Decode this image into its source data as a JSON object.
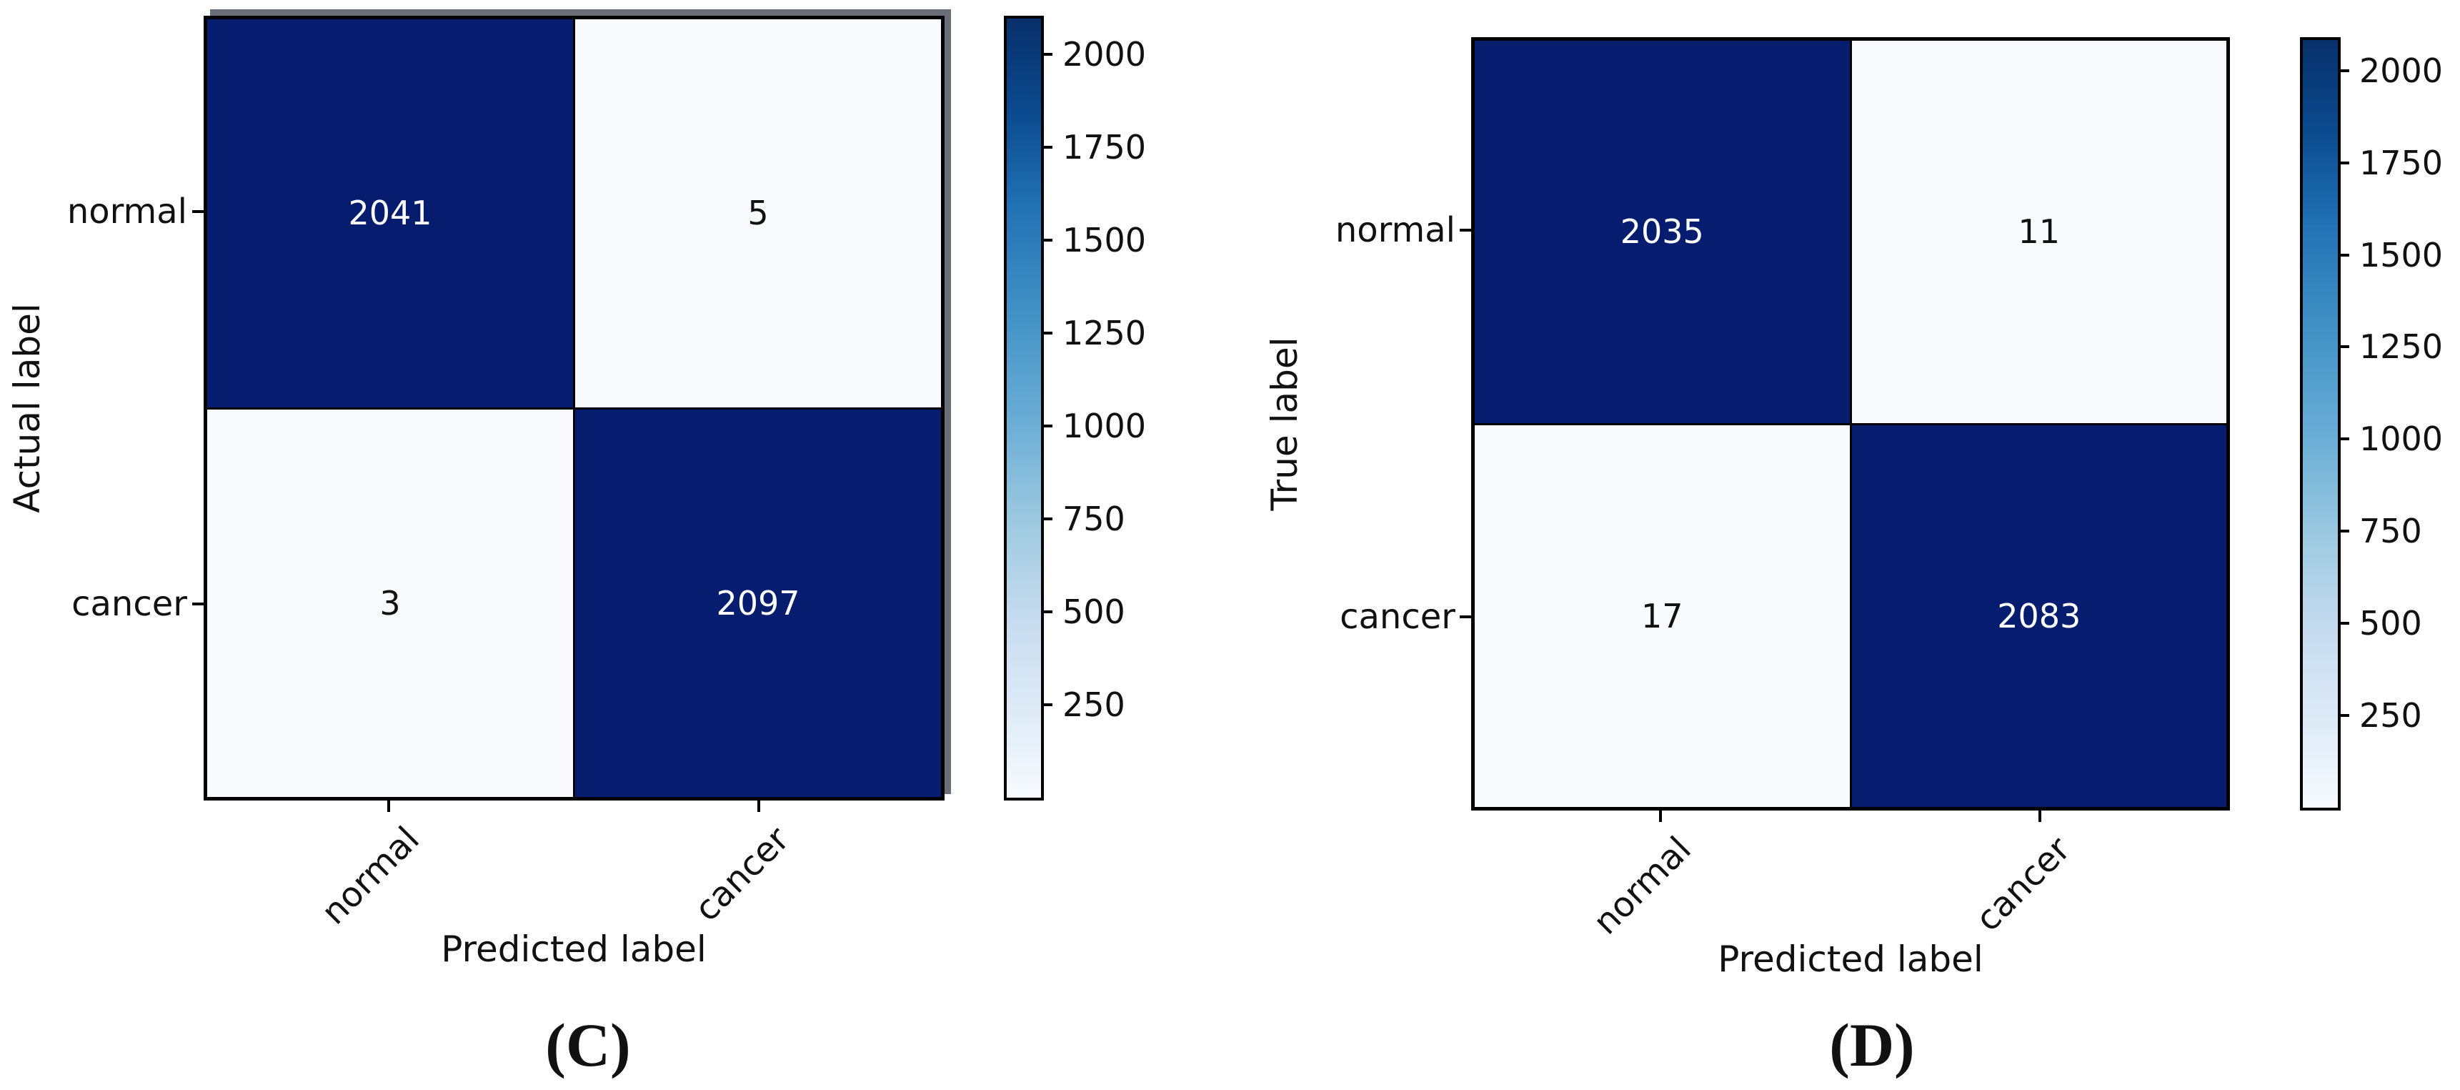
{
  "chart_data": [
    {
      "type": "heatmap",
      "title": "(C)",
      "xlabel": "Predicted label",
      "ylabel": "Actual label",
      "x_categories": [
        "normal",
        "cancer"
      ],
      "y_categories": [
        "normal",
        "cancer"
      ],
      "values": [
        [
          2041,
          5
        ],
        [
          3,
          2097
        ]
      ],
      "vmin": 0,
      "vmax": 2097,
      "colorbar_ticks": [
        250,
        500,
        750,
        1000,
        1250,
        1500,
        1750,
        2000
      ],
      "colormap": "Blues",
      "legend_position": "colorbar-right",
      "grid": false
    },
    {
      "type": "heatmap",
      "title": "(D)",
      "xlabel": "Predicted label",
      "ylabel": "True label",
      "x_categories": [
        "normal",
        "cancer"
      ],
      "y_categories": [
        "normal",
        "cancer"
      ],
      "values": [
        [
          2035,
          11
        ],
        [
          17,
          2083
        ]
      ],
      "vmin": 0,
      "vmax": 2083,
      "colorbar_ticks": [
        250,
        500,
        750,
        1000,
        1250,
        1500,
        1750,
        2000
      ],
      "colormap": "Blues",
      "legend_position": "colorbar-right",
      "grid": false
    }
  ],
  "colors": {
    "cell_dark": "#061c6e",
    "cell_light": "#f8fafd",
    "value_text_on_dark": "#ffffff",
    "value_text_on_light": "#111111",
    "panel_edge": "#000000",
    "panel_shadow": "#696e78",
    "colormap_stops": [
      "#f7fbff 0%",
      "#deebf7 11%",
      "#c6dbef 23%",
      "#9ecae1 35%",
      "#6baed6 48%",
      "#4292c6 62%",
      "#2171b5 76%",
      "#0b4a8f 88%",
      "#08306b 100%"
    ]
  }
}
